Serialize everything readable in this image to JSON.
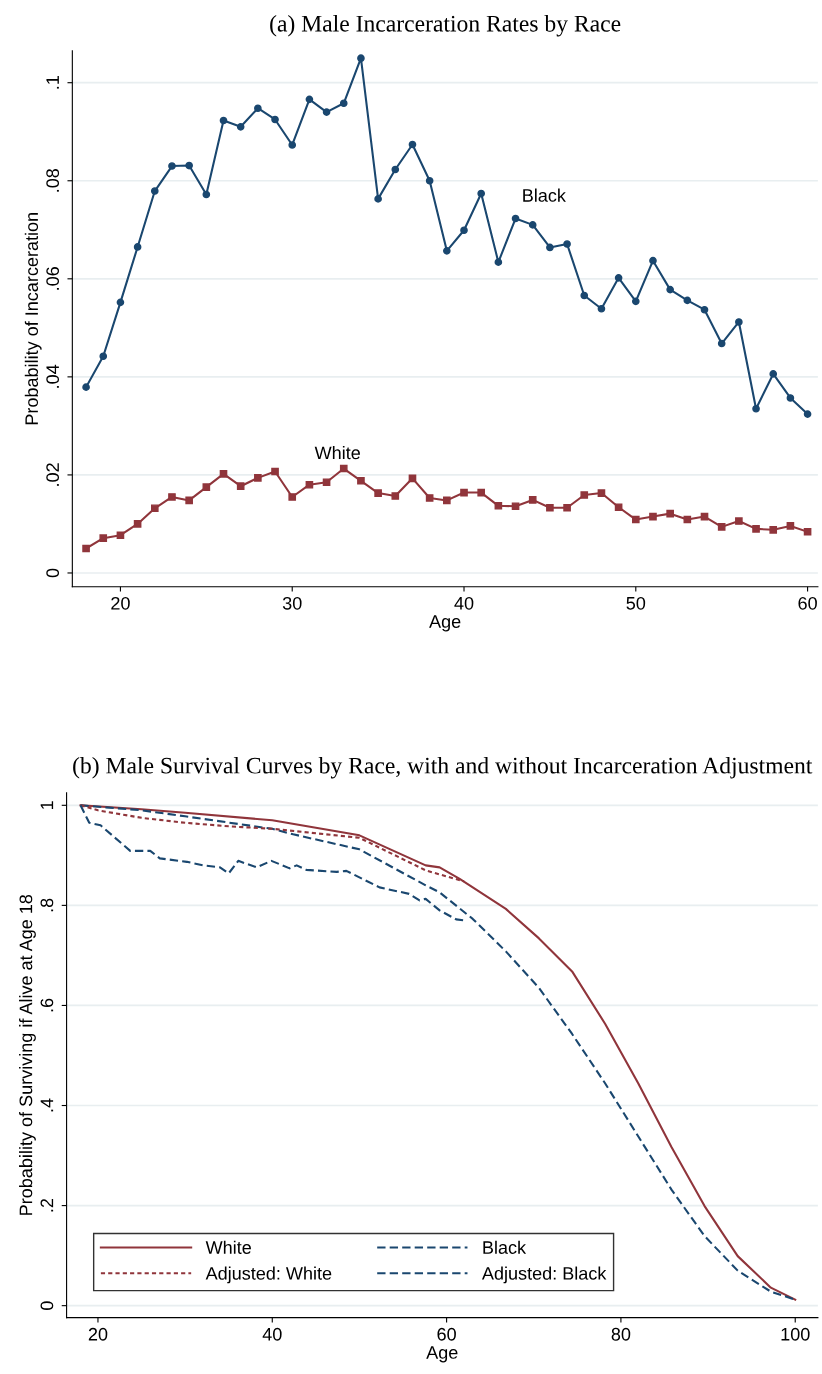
{
  "chart_data": [
    {
      "type": "line",
      "title": "(a) Male Incarceration Rates by Race",
      "xlabel": "Age",
      "ylabel": "Probability of Incarceration",
      "xlim": [
        17.2,
        60.6
      ],
      "ylim": [
        -0.0028,
        0.1065
      ],
      "xticks": [
        20,
        30,
        40,
        50,
        60
      ],
      "yticks": [
        {
          "value": 0,
          "label": "0"
        },
        {
          "value": 0.02,
          "label": ".02"
        },
        {
          "value": 0.04,
          "label": ".04"
        },
        {
          "value": 0.06,
          "label": ".06"
        },
        {
          "value": 0.08,
          "label": ".08"
        },
        {
          "value": 0.1,
          "label": ".1"
        }
      ],
      "grid": "y",
      "legend": false,
      "x": [
        18,
        19,
        20,
        21,
        22,
        23,
        24,
        25,
        26,
        27,
        28,
        29,
        30,
        31,
        32,
        33,
        34,
        35,
        36,
        37,
        38,
        39,
        40,
        41,
        42,
        43,
        44,
        45,
        46,
        47,
        48,
        49,
        50,
        51,
        52,
        53,
        54,
        55,
        56,
        57,
        58,
        59,
        60
      ],
      "series": [
        {
          "color": "#1a476f",
          "marker": "circle",
          "line_style": "solid",
          "values": [
            0.0379,
            0.0442,
            0.0552,
            0.0665,
            0.0779,
            0.083,
            0.0831,
            0.0772,
            0.0923,
            0.091,
            0.0948,
            0.0925,
            0.0873,
            0.0966,
            0.094,
            0.0958,
            0.105,
            0.0763,
            0.0823,
            0.0874,
            0.08,
            0.0657,
            0.0699,
            0.0774,
            0.0634,
            0.0723,
            0.071,
            0.0664,
            0.0671,
            0.0566,
            0.0539,
            0.0602,
            0.0554,
            0.0637,
            0.0578,
            0.0556,
            0.0537,
            0.0468,
            0.0512,
            0.0335,
            0.0406,
            0.0357,
            0.0324
          ]
        },
        {
          "color": "#90353b",
          "marker": "square",
          "line_style": "solid",
          "values": [
            0.005,
            0.0071,
            0.0077,
            0.01,
            0.0132,
            0.0155,
            0.0148,
            0.0175,
            0.0202,
            0.0177,
            0.0194,
            0.0207,
            0.0155,
            0.018,
            0.0185,
            0.0213,
            0.0188,
            0.0163,
            0.0157,
            0.0193,
            0.0153,
            0.0148,
            0.0164,
            0.0164,
            0.0137,
            0.0136,
            0.0149,
            0.0133,
            0.0133,
            0.0159,
            0.0163,
            0.0134,
            0.0109,
            0.0115,
            0.0121,
            0.0109,
            0.0115,
            0.0094,
            0.0106,
            0.009,
            0.0088,
            0.0096,
            0.0084
          ]
        }
      ],
      "annotations": [
        {
          "text": "Black",
          "x": 44,
          "y": 0.071
        },
        {
          "text": "White",
          "x": 32,
          "y": 0.0185
        }
      ]
    },
    {
      "type": "line",
      "title": "(b) Male Survival Curves by Race, with and without Incarceration Adjustment",
      "xlabel": "Age",
      "ylabel": "Probability of Surviving if Alive at Age 18",
      "xlim": [
        16.4,
        102.6
      ],
      "ylim": [
        -0.024,
        1.025
      ],
      "xticks": [
        20,
        40,
        60,
        80,
        100
      ],
      "yticks": [
        {
          "value": 0,
          "label": "0"
        },
        {
          "value": 0.2,
          "label": ".2"
        },
        {
          "value": 0.4,
          "label": ".4"
        },
        {
          "value": 0.6,
          "label": ".6"
        },
        {
          "value": 0.8,
          "label": ".8"
        },
        {
          "value": 1,
          "label": "1"
        }
      ],
      "grid": "y",
      "legend": "bottom left",
      "marker": "none",
      "series": [
        {
          "name": "White",
          "color": "#90353b",
          "line_style": "solid",
          "x": [
            18,
            25,
            30,
            40,
            50,
            57.6,
            59.2,
            61.5,
            66.8,
            70.6,
            74.4,
            78.2,
            82,
            85.8,
            89.6,
            93.4,
            97.2,
            100
          ],
          "values": [
            1,
            0.992,
            0.985,
            0.97,
            0.94,
            0.88,
            0.876,
            0.853,
            0.793,
            0.734,
            0.668,
            0.563,
            0.444,
            0.317,
            0.199,
            0.099,
            0.036,
            0.012
          ]
        },
        {
          "name": "Black",
          "color": "#1a476f",
          "line_style": "dashed",
          "x": [
            18,
            25,
            30,
            40,
            42.4,
            50,
            57.6,
            59.2,
            63,
            66.8,
            70.6,
            74.4,
            78.2,
            82,
            85.8,
            89.6,
            93.4,
            97.2,
            100
          ],
          "values": [
            1,
            0.99,
            0.978,
            0.953,
            0.942,
            0.912,
            0.84,
            0.826,
            0.773,
            0.708,
            0.635,
            0.543,
            0.444,
            0.338,
            0.232,
            0.139,
            0.07,
            0.028,
            0.012
          ]
        },
        {
          "name": "Adjusted: White",
          "color": "#90353b",
          "line_style": "dotted",
          "x": [
            18,
            20,
            25,
            30,
            35,
            40,
            50,
            57.6,
            62
          ],
          "values": [
            1,
            0.99,
            0.975,
            0.965,
            0.958,
            0.953,
            0.935,
            0.87,
            0.848
          ]
        },
        {
          "name": "Adjusted: Black",
          "color": "#1a476f",
          "line_style": "dashed",
          "x": [
            18,
            19,
            20.3,
            23.7,
            26,
            27.1,
            30.2,
            32.1,
            34,
            35,
            36.1,
            38.2,
            39.9,
            42,
            42.8,
            43.9,
            47.4,
            48.5,
            50,
            52.3,
            55.7,
            56.9,
            57.6,
            59.2,
            61.1,
            62
          ],
          "values": [
            1,
            0.965,
            0.96,
            0.909,
            0.909,
            0.894,
            0.887,
            0.88,
            0.876,
            0.864,
            0.889,
            0.876,
            0.889,
            0.874,
            0.88,
            0.871,
            0.867,
            0.869,
            0.856,
            0.836,
            0.823,
            0.81,
            0.813,
            0.79,
            0.772,
            0.77
          ]
        }
      ]
    }
  ]
}
